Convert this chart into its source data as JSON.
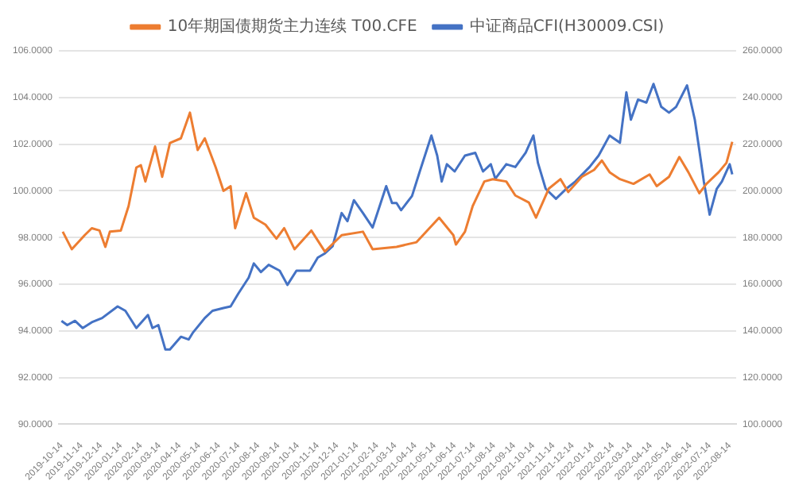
{
  "chart_data": {
    "type": "line",
    "xlim": [
      "2019-10-10",
      "2022-08-24"
    ],
    "xticks": [
      "2019-10-14",
      "2019-11-14",
      "2019-12-14",
      "2020-01-14",
      "2020-02-14",
      "2020-03-14",
      "2020-04-14",
      "2020-05-14",
      "2020-06-14",
      "2020-07-14",
      "2020-08-14",
      "2020-09-14",
      "2020-10-14",
      "2020-11-14",
      "2020-12-14",
      "2021-01-14",
      "2021-02-14",
      "2021-03-14",
      "2021-04-14",
      "2021-05-14",
      "2021-06-14",
      "2021-07-14",
      "2021-08-14",
      "2021-09-14",
      "2021-10-14",
      "2021-11-14",
      "2021-12-14",
      "2022-01-14",
      "2022-02-14",
      "2022-03-14",
      "2022-04-14",
      "2022-05-14",
      "2022-06-14",
      "2022-07-14",
      "2022-08-14"
    ],
    "ylim": [
      90,
      106
    ],
    "yticks": [
      {
        "value": 90,
        "label": "90.0000"
      },
      {
        "value": 92,
        "label": "92.0000"
      },
      {
        "value": 94,
        "label": "94.0000"
      },
      {
        "value": 96,
        "label": "96.0000"
      },
      {
        "value": 98,
        "label": "98.0000"
      },
      {
        "value": 100,
        "label": "100.0000"
      },
      {
        "value": 102,
        "label": "102.0000"
      },
      {
        "value": 104,
        "label": "104.0000"
      },
      {
        "value": 106,
        "label": "106.0000"
      }
    ],
    "y2lim": [
      100,
      260
    ],
    "y2ticks": [
      {
        "value": 100,
        "label": "100.0000"
      },
      {
        "value": 120,
        "label": "120.0000"
      },
      {
        "value": 140,
        "label": "140.0000"
      },
      {
        "value": 160,
        "label": "160.0000"
      },
      {
        "value": 180,
        "label": "180.0000"
      },
      {
        "value": 200,
        "label": "200.0000"
      },
      {
        "value": 220,
        "label": "220.0000"
      },
      {
        "value": 240,
        "label": "240.0000"
      },
      {
        "value": 260,
        "label": "260.0000"
      }
    ],
    "grid": "y",
    "legend": "top",
    "marker": "none",
    "line_style": "solid",
    "series": [
      {
        "name": "10年期国债期货主力连续 T00.CFE",
        "color": "#ed7d31",
        "x": [
          "2019-10-16",
          "2019-10-30",
          "2019-11-19",
          "2019-11-30",
          "2019-12-12",
          "2019-12-21",
          "2019-12-28",
          "2020-01-14",
          "2020-01-26",
          "2020-02-07",
          "2020-02-14",
          "2020-02-21",
          "2020-03-07",
          "2020-03-18",
          "2020-03-30",
          "2020-04-16",
          "2020-04-30",
          "2020-05-12",
          "2020-05-23",
          "2020-06-09",
          "2020-06-21",
          "2020-07-02",
          "2020-07-09",
          "2020-07-26",
          "2020-08-07",
          "2020-08-25",
          "2020-09-11",
          "2020-09-23",
          "2020-10-09",
          "2020-11-04",
          "2020-11-25",
          "2020-12-21",
          "2021-01-23",
          "2021-02-07",
          "2021-03-16",
          "2021-04-16",
          "2021-05-21",
          "2021-06-12",
          "2021-06-16",
          "2021-06-30",
          "2021-07-12",
          "2021-07-30",
          "2021-08-12",
          "2021-09-02",
          "2021-09-16",
          "2021-10-07",
          "2021-10-18",
          "2021-10-30",
          "2021-11-07",
          "2021-11-25",
          "2021-12-07",
          "2021-12-28",
          "2022-01-16",
          "2022-01-28",
          "2022-02-09",
          "2022-02-25",
          "2022-03-18",
          "2022-04-12",
          "2022-04-23",
          "2022-05-12",
          "2022-05-28",
          "2022-06-11",
          "2022-06-28",
          "2022-07-09",
          "2022-07-28",
          "2022-08-09",
          "2022-08-18"
        ],
        "values": [
          98.25,
          97.5,
          98.1,
          98.4,
          98.3,
          97.6,
          98.25,
          98.3,
          99.35,
          101.0,
          101.1,
          100.4,
          101.9,
          100.6,
          102.05,
          102.25,
          103.35,
          101.75,
          102.25,
          101.0,
          100.0,
          100.2,
          98.4,
          99.9,
          98.85,
          98.55,
          97.95,
          98.4,
          97.5,
          98.3,
          97.4,
          98.1,
          98.25,
          97.5,
          97.6,
          97.8,
          98.85,
          98.1,
          97.7,
          98.25,
          99.35,
          100.4,
          100.5,
          100.4,
          99.8,
          99.5,
          98.85,
          99.6,
          100.1,
          100.5,
          99.95,
          100.6,
          100.9,
          101.3,
          100.8,
          100.5,
          100.3,
          100.7,
          100.2,
          100.6,
          101.45,
          100.8,
          99.9,
          100.3,
          100.8,
          101.2,
          102.1
        ]
      },
      {
        "name": "中证商品CFI(H30009.CSI)",
        "color": "#4472c4",
        "axis": "y2",
        "x": [
          "2019-10-14",
          "2019-10-23",
          "2019-11-04",
          "2019-11-16",
          "2019-11-30",
          "2019-12-16",
          "2020-01-09",
          "2020-01-21",
          "2020-02-07",
          "2020-02-25",
          "2020-03-03",
          "2020-03-12",
          "2020-03-23",
          "2020-03-30",
          "2020-04-16",
          "2020-04-28",
          "2020-05-05",
          "2020-05-23",
          "2020-06-04",
          "2020-06-21",
          "2020-07-02",
          "2020-07-14",
          "2020-07-30",
          "2020-08-07",
          "2020-08-18",
          "2020-08-30",
          "2020-09-16",
          "2020-09-28",
          "2020-10-12",
          "2020-11-02",
          "2020-11-14",
          "2020-11-25",
          "2020-12-07",
          "2020-12-21",
          "2020-12-30",
          "2021-01-09",
          "2021-01-23",
          "2021-02-07",
          "2021-02-28",
          "2021-03-09",
          "2021-03-16",
          "2021-03-23",
          "2021-04-09",
          "2021-04-21",
          "2021-05-09",
          "2021-05-18",
          "2021-05-25",
          "2021-06-02",
          "2021-06-14",
          "2021-06-30",
          "2021-07-16",
          "2021-07-28",
          "2021-08-09",
          "2021-08-16",
          "2021-09-02",
          "2021-09-16",
          "2021-10-02",
          "2021-10-14",
          "2021-10-21",
          "2021-11-02",
          "2021-11-18",
          "2021-12-04",
          "2021-12-18",
          "2022-01-09",
          "2022-01-23",
          "2022-02-09",
          "2022-02-25",
          "2022-03-07",
          "2022-03-14",
          "2022-03-25",
          "2022-04-07",
          "2022-04-18",
          "2022-04-30",
          "2022-05-12",
          "2022-05-23",
          "2022-06-09",
          "2022-06-21",
          "2022-06-28",
          "2022-07-05",
          "2022-07-14",
          "2022-07-25",
          "2022-08-02",
          "2022-08-14",
          "2022-08-18"
        ],
        "values": [
          144.3,
          142.5,
          144.3,
          141.2,
          143.7,
          145.5,
          150.5,
          148.6,
          141.2,
          146.8,
          141.2,
          142.5,
          132,
          132,
          137.5,
          136.3,
          139.4,
          145.5,
          148.6,
          149.8,
          150.5,
          156,
          162.8,
          168.9,
          165.2,
          168.3,
          165.8,
          159.7,
          165.8,
          165.8,
          171.4,
          173.2,
          176.3,
          190.5,
          187,
          196,
          190.5,
          184.3,
          202,
          194.8,
          194.8,
          191.7,
          197.8,
          208.3,
          223.7,
          215.1,
          204,
          211.4,
          208.3,
          215.1,
          216.3,
          208.3,
          211.4,
          205.2,
          211.4,
          210.2,
          216.3,
          223.7,
          212,
          200.9,
          196.6,
          200.9,
          204,
          210.2,
          215.1,
          223.7,
          220.6,
          242.2,
          230.5,
          239.1,
          237.8,
          245.8,
          236,
          233.5,
          236,
          245.2,
          230.5,
          217.5,
          204,
          189.8,
          200.9,
          204,
          211.4,
          207.1
        ]
      }
    ]
  }
}
